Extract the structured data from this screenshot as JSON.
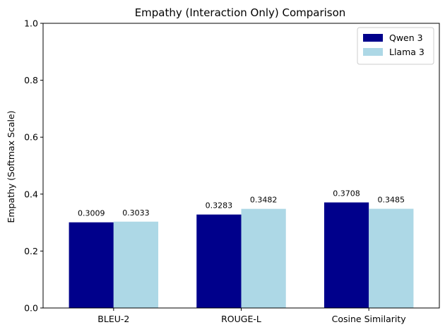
{
  "chart_data": {
    "type": "bar",
    "title": "Empathy (Interaction Only) Comparison",
    "xlabel": "",
    "ylabel": "Empathy (Softmax Scale)",
    "categories": [
      "BLEU-2",
      "ROUGE-L",
      "Cosine Similarity"
    ],
    "series": [
      {
        "name": "Qwen 3",
        "color": "#00008B",
        "values": [
          0.3009,
          0.3283,
          0.3708
        ],
        "labels": [
          "0.3009",
          "0.3283",
          "0.3708"
        ]
      },
      {
        "name": "Llama 3",
        "color": "#ADD8E6",
        "values": [
          0.3033,
          0.3482,
          0.3485
        ],
        "labels": [
          "0.3033",
          "0.3482",
          "0.3485"
        ]
      }
    ],
    "ylim": [
      0,
      1.0
    ],
    "yticks": [
      0.0,
      0.2,
      0.4,
      0.6,
      0.8,
      1.0
    ],
    "ytick_labels": [
      "0.0",
      "0.2",
      "0.4",
      "0.6",
      "0.8",
      "1.0"
    ],
    "grid": false,
    "legend_position": "top-right"
  }
}
